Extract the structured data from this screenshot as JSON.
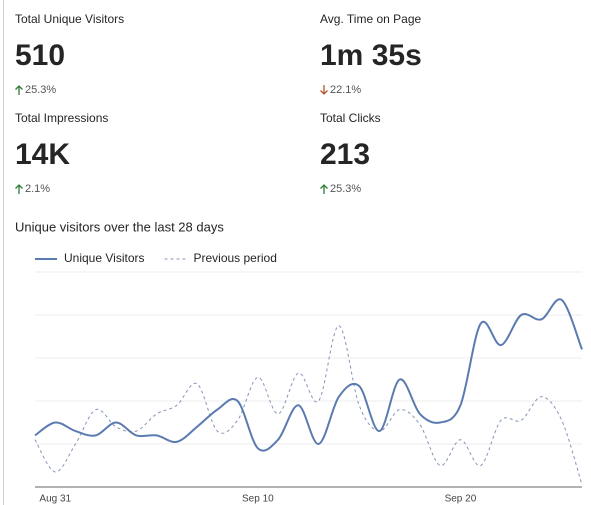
{
  "kpis": [
    {
      "label": "Total Unique Visitors",
      "value": "510",
      "change": "25.3%",
      "direction": "up"
    },
    {
      "label": "Avg. Time on Page",
      "value": "1m 35s",
      "change": "22.1%",
      "direction": "down"
    },
    {
      "label": "Total Impressions",
      "value": "14K",
      "change": "2.1%",
      "direction": "up"
    },
    {
      "label": "Total Clicks",
      "value": "213",
      "change": "25.3%",
      "direction": "up"
    }
  ],
  "chart_data": {
    "type": "line",
    "title": "Unique visitors over the last 28 days",
    "categories": [
      null,
      "Aug 31",
      null,
      null,
      null,
      null,
      null,
      null,
      null,
      null,
      null,
      "Sep 10",
      null,
      null,
      null,
      null,
      null,
      null,
      null,
      null,
      null,
      "Sep 20",
      null,
      null,
      null,
      null,
      null,
      null
    ],
    "series": [
      {
        "name": "Unique Visitors",
        "color": "#5b7bb0",
        "dashed": false,
        "values": [
          1.2,
          1.5,
          1.3,
          1.2,
          1.5,
          1.2,
          1.2,
          1.05,
          1.4,
          1.8,
          2.0,
          0.9,
          1.1,
          1.9,
          1.0,
          2.1,
          2.35,
          1.3,
          2.5,
          1.7,
          1.5,
          1.9,
          3.8,
          3.3,
          4.0,
          3.9,
          4.35,
          3.2
        ]
      },
      {
        "name": "Previous period",
        "color": "#8494b8",
        "dashed": true,
        "values": [
          1.1,
          0.35,
          1.0,
          1.8,
          1.4,
          1.3,
          1.7,
          1.9,
          2.4,
          1.3,
          1.55,
          2.55,
          1.7,
          2.65,
          2.0,
          3.75,
          1.9,
          1.3,
          1.8,
          1.45,
          0.5,
          1.1,
          0.5,
          1.55,
          1.55,
          2.1,
          1.55,
          0.05
        ]
      }
    ],
    "ylim": [
      0,
      5
    ],
    "yticks": [
      0,
      1,
      2,
      3,
      4,
      5
    ],
    "grid": true
  }
}
